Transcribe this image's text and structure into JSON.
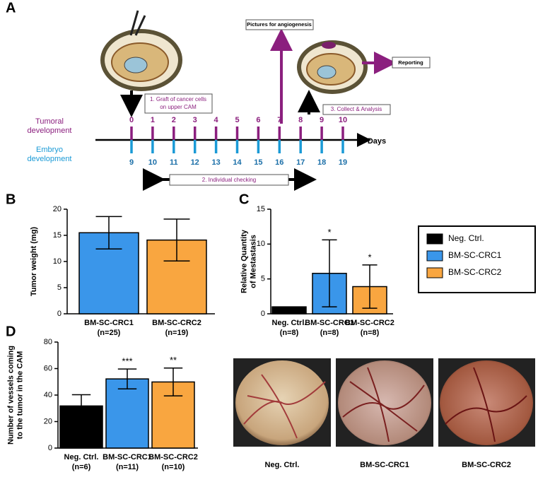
{
  "timeline": {
    "label": "A",
    "tumoral_label": [
      "Tumoral",
      "development"
    ],
    "embryo_label": [
      "Embryo",
      "development"
    ],
    "tumoral_days": [
      "0",
      "1",
      "2",
      "3",
      "4",
      "5",
      "6",
      "7",
      "8",
      "9",
      "10"
    ],
    "embryo_days": [
      "9",
      "10",
      "11",
      "12",
      "13",
      "14",
      "15",
      "16",
      "17",
      "18",
      "19"
    ],
    "axis_label": "Days",
    "step1": [
      "1. Graft of cancer cells",
      "on upper CAM"
    ],
    "step2": "2. Individual checking",
    "step3": "3. Collect & Analysis",
    "pictures": "Pictures for angiogenesis",
    "reporting": "Reporting"
  },
  "chart_data": [
    {
      "type": "bar",
      "label": "B",
      "ylabel": [
        "Tumor weight (mg)"
      ],
      "categories": [
        "BM-SC-CRC1",
        "BM-SC-CRC2"
      ],
      "sample_sizes": [
        "(n=25)",
        "(n=19)"
      ],
      "values": [
        15.5,
        14.1
      ],
      "errors": [
        3.1,
        4.0
      ],
      "colors": [
        "#3a96ea",
        "#f9a640"
      ],
      "significance": [
        null,
        null
      ],
      "ylim": [
        0,
        20
      ],
      "yticks": [
        0,
        5,
        10,
        15,
        20
      ]
    },
    {
      "type": "bar",
      "label": "C",
      "ylabel": [
        "Relative Quantity",
        "of Mestastasis"
      ],
      "categories": [
        "Neg. Ctrl.",
        "BM-SC-CRC1",
        "BM-SC-CRC2"
      ],
      "sample_sizes": [
        "(n=8)",
        "(n=8)",
        "(n=8)"
      ],
      "values": [
        1.0,
        5.8,
        3.9
      ],
      "errors": [
        0,
        4.8,
        3.1
      ],
      "colors": [
        "#000000",
        "#3a96ea",
        "#f9a640"
      ],
      "significance": [
        null,
        "*",
        "*"
      ],
      "ylim": [
        0,
        15
      ],
      "yticks": [
        0,
        5,
        10,
        15
      ],
      "legend": "right"
    },
    {
      "type": "bar",
      "label": "D",
      "ylabel": [
        "Number of vessels coming",
        "to the tumor in the CAM"
      ],
      "categories": [
        "Neg. Ctrl.",
        "BM-SC-CRC1",
        "BM-SC-CRC2"
      ],
      "sample_sizes": [
        "(n=6)",
        "(n=11)",
        "(n=10)"
      ],
      "values": [
        31.8,
        52.2,
        49.9
      ],
      "errors": [
        8.5,
        7.5,
        10.5
      ],
      "colors": [
        "#000000",
        "#3a96ea",
        "#f9a640"
      ],
      "significance": [
        null,
        "***",
        "**"
      ],
      "ylim": [
        0,
        80
      ],
      "yticks": [
        0,
        20,
        40,
        60,
        80
      ]
    }
  ],
  "photos": {
    "captions": [
      "Neg. Ctrl.",
      "BM-SC-CRC1",
      "BM-SC-CRC2"
    ]
  }
}
